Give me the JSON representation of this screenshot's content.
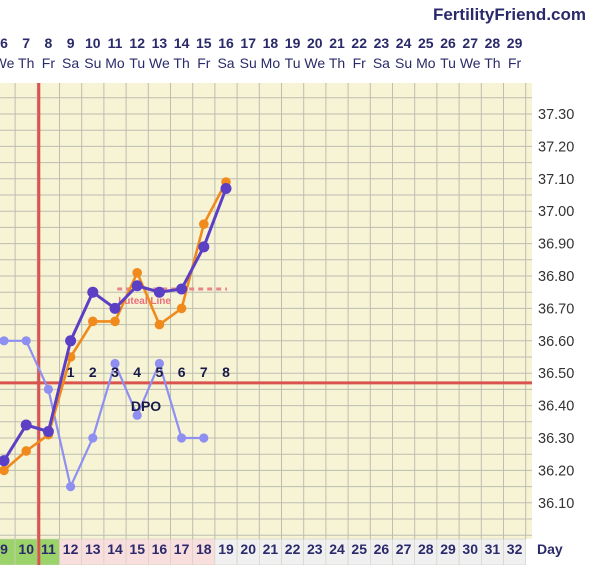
{
  "brand": "FertilityFriend.com",
  "colors": {
    "background": "#f6f4d5",
    "grid": "#bdbdb0",
    "coverline": "#d9534f",
    "ovulation_line": "#d9534f",
    "primary_series": "#5b3fc4",
    "secondary_series": "#f08a1c",
    "tertiary_series": "#8f8ff2",
    "luteal_line": "#e8848c",
    "text": "#2a2a6a"
  },
  "day_label": "Day",
  "dpo_label": "DPO",
  "luteal_label": "Luteal Line",
  "chart_data": {
    "type": "line",
    "x_dates": [
      "6",
      "7",
      "8",
      "9",
      "10",
      "11",
      "12",
      "13",
      "14",
      "15",
      "16",
      "17",
      "18",
      "19",
      "20",
      "21",
      "22",
      "23",
      "24",
      "25",
      "26",
      "27",
      "28",
      "29"
    ],
    "x_weekdays": [
      "We",
      "Th",
      "Fr",
      "Sa",
      "Su",
      "Mo",
      "Tu",
      "We",
      "Th",
      "Fr",
      "Sa",
      "Su",
      "Mo",
      "Tu",
      "We",
      "Th",
      "Fr",
      "Sa",
      "Su",
      "Mo",
      "Tu",
      "We",
      "Th",
      "Fr"
    ],
    "cycle_days": [
      "9",
      "10",
      "11",
      "12",
      "13",
      "14",
      "15",
      "16",
      "17",
      "18",
      "19",
      "20",
      "21",
      "22",
      "23",
      "24",
      "25",
      "26",
      "27",
      "28",
      "29",
      "30",
      "31",
      "32"
    ],
    "y_ticks": [
      "37.30",
      "37.20",
      "37.10",
      "37.00",
      "36.90",
      "36.80",
      "36.70",
      "36.60",
      "36.50",
      "36.40",
      "36.30",
      "36.20",
      "36.10"
    ],
    "ylim": [
      36.02,
      37.4
    ],
    "coverline": 36.47,
    "ovulation_cycle_day": 11,
    "dpo_labels": [
      "1",
      "2",
      "3",
      "4",
      "5",
      "6",
      "7",
      "8"
    ],
    "dpo_start_cycle_day": 12,
    "luteal_line": {
      "value": 36.76,
      "from_cycle_day": 15,
      "to_cycle_day": 19
    },
    "series": [
      {
        "x": [
          9,
          10,
          11,
          12,
          13,
          14,
          15,
          16,
          17,
          18,
          19
        ],
        "values": [
          36.23,
          36.34,
          36.32,
          36.6,
          36.75,
          36.7,
          36.77,
          36.75,
          36.76,
          36.89,
          37.07
        ]
      },
      {
        "x": [
          9,
          10,
          11,
          12,
          13,
          14,
          15,
          16,
          17,
          18,
          19
        ],
        "values": [
          36.2,
          36.26,
          36.31,
          36.55,
          36.66,
          36.66,
          36.81,
          36.65,
          36.7,
          36.96,
          37.09
        ]
      },
      {
        "x": [
          9,
          10,
          11,
          12,
          13,
          14,
          15,
          16,
          17,
          18
        ],
        "values": [
          36.6,
          36.6,
          36.45,
          36.15,
          36.3,
          36.53,
          36.37,
          36.53,
          36.3,
          36.3
        ]
      }
    ]
  }
}
